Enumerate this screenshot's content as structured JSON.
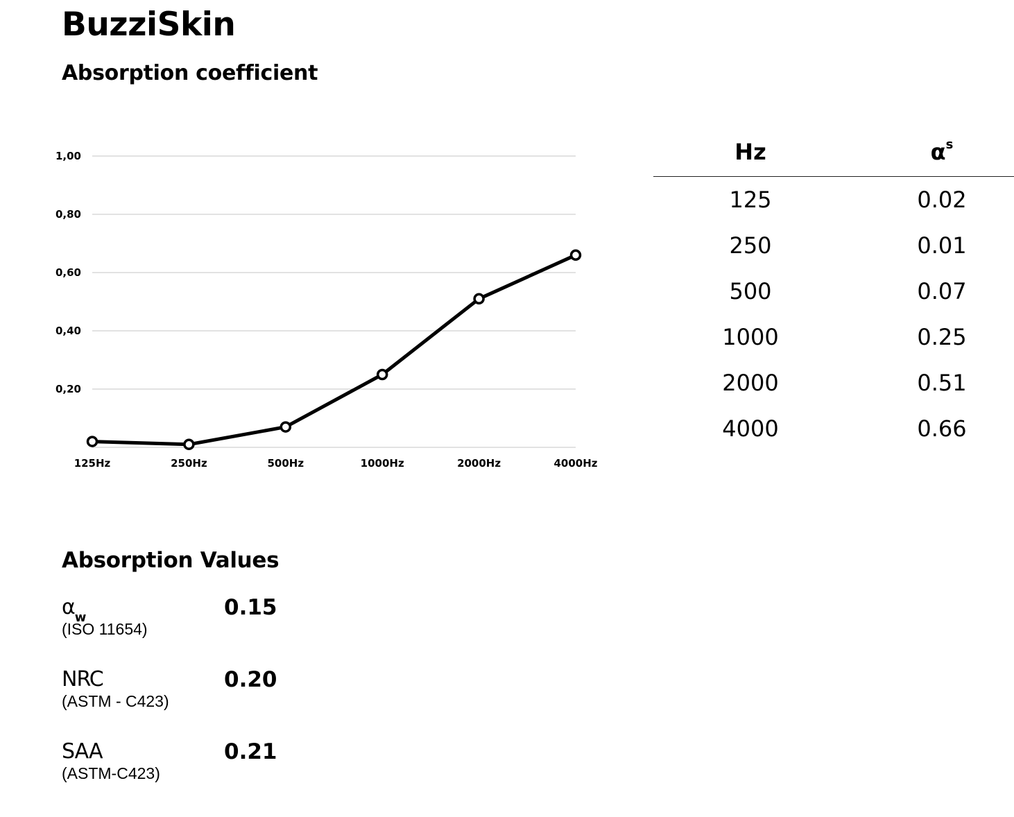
{
  "header": {
    "title": "BuzziSkin",
    "subtitle": "Absorption coefficient"
  },
  "chart_data": {
    "type": "line",
    "categories": [
      "125Hz",
      "250Hz",
      "500Hz",
      "1000Hz",
      "2000Hz",
      "4000Hz"
    ],
    "series": [
      {
        "values": [
          0.02,
          0.01,
          0.07,
          0.25,
          0.51,
          0.66
        ]
      }
    ],
    "yticks": [
      "1,00",
      "0,80",
      "0,60",
      "0,40",
      "0,20"
    ],
    "ytick_values": [
      1.0,
      0.8,
      0.6,
      0.4,
      0.2
    ],
    "ylim": [
      0,
      1
    ],
    "grid": true,
    "line_color": "#000000",
    "grid_color": "#d0d0d0"
  },
  "table": {
    "headers": {
      "hz": "Hz",
      "alpha": "α",
      "alpha_sup": "s"
    },
    "rows": [
      {
        "hz": "125",
        "alpha": "0.02"
      },
      {
        "hz": "250",
        "alpha": "0.01"
      },
      {
        "hz": "500",
        "alpha": "0.07"
      },
      {
        "hz": "1000",
        "alpha": "0.25"
      },
      {
        "hz": "2000",
        "alpha": "0.51"
      },
      {
        "hz": "4000",
        "alpha": "0.66"
      }
    ]
  },
  "values": {
    "heading": "Absorption Values",
    "items": [
      {
        "name": "α",
        "sub": "w",
        "standard": "(ISO 11654)",
        "value": "0.15"
      },
      {
        "name": "NRC",
        "sub": "",
        "standard": "(ASTM - C423)",
        "value": "0.20"
      },
      {
        "name": "SAA",
        "sub": "",
        "standard": "(ASTM-C423)",
        "value": "0.21"
      }
    ]
  }
}
